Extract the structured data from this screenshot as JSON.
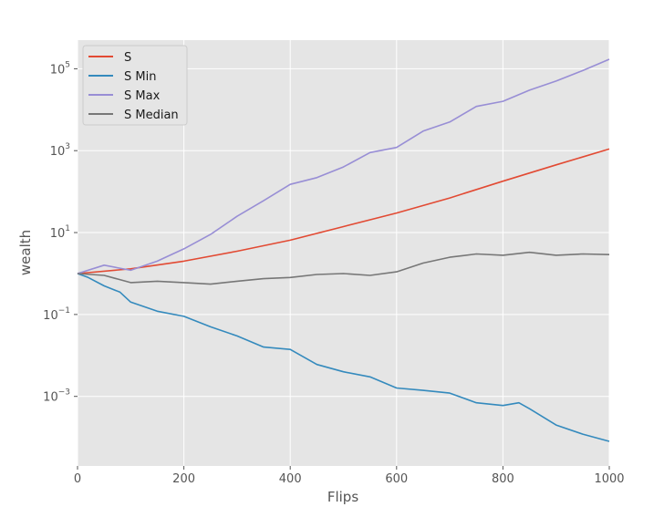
{
  "chart_data": {
    "type": "line",
    "xlabel": "Flips",
    "ylabel": "wealth",
    "yscale": "log",
    "xlim": [
      0,
      1000
    ],
    "ylim": [
      2e-05,
      500000
    ],
    "grid": true,
    "legend_position": "top-left",
    "x_ticks": [
      {
        "value": 0,
        "label": "0"
      },
      {
        "value": 200,
        "label": "200"
      },
      {
        "value": 400,
        "label": "400"
      },
      {
        "value": 600,
        "label": "600"
      },
      {
        "value": 800,
        "label": "800"
      },
      {
        "value": 1000,
        "label": "1000"
      }
    ],
    "y_ticks": [
      {
        "value": 0.001,
        "base": "10",
        "exp": "−3"
      },
      {
        "value": 0.1,
        "base": "10",
        "exp": "−1"
      },
      {
        "value": 10,
        "base": "10",
        "exp": "1"
      },
      {
        "value": 1000,
        "base": "10",
        "exp": "3"
      },
      {
        "value": 100000,
        "base": "10",
        "exp": "5"
      }
    ],
    "series": [
      {
        "name": "S",
        "color": "#E24A33",
        "x": [
          0,
          100,
          200,
          300,
          400,
          500,
          600,
          700,
          800,
          900,
          1000
        ],
        "values": [
          1.0,
          1.3,
          2.0,
          3.5,
          6.5,
          14,
          30,
          70,
          180,
          450,
          1100
        ]
      },
      {
        "name": "S Min",
        "color": "#348ABD",
        "x": [
          0,
          20,
          50,
          80,
          100,
          150,
          200,
          250,
          300,
          350,
          400,
          450,
          500,
          550,
          600,
          650,
          700,
          750,
          800,
          830,
          850,
          900,
          950,
          1000
        ],
        "values": [
          1.0,
          0.8,
          0.5,
          0.35,
          0.2,
          0.12,
          0.09,
          0.05,
          0.03,
          0.016,
          0.014,
          0.006,
          0.004,
          0.003,
          0.0016,
          0.0014,
          0.0012,
          0.0007,
          0.0006,
          0.0007,
          0.0005,
          0.0002,
          0.00012,
          8e-05
        ]
      },
      {
        "name": "S Max",
        "color": "#988ED5",
        "x": [
          0,
          50,
          100,
          150,
          200,
          250,
          300,
          350,
          400,
          450,
          500,
          550,
          600,
          650,
          700,
          750,
          800,
          850,
          900,
          950,
          1000
        ],
        "values": [
          1.0,
          1.6,
          1.2,
          2.0,
          4.0,
          9.0,
          25,
          60,
          150,
          220,
          400,
          900,
          1200,
          3000,
          5000,
          12000,
          16000,
          30000,
          50000,
          90000,
          170000
        ]
      },
      {
        "name": "S Median",
        "color": "#777777",
        "x": [
          0,
          50,
          100,
          150,
          200,
          250,
          300,
          350,
          400,
          450,
          500,
          550,
          600,
          650,
          700,
          750,
          800,
          850,
          900,
          950,
          1000
        ],
        "values": [
          1.0,
          0.9,
          0.6,
          0.65,
          0.6,
          0.55,
          0.65,
          0.75,
          0.8,
          0.95,
          1.0,
          0.9,
          1.1,
          1.8,
          2.5,
          3.0,
          2.8,
          3.3,
          2.8,
          3.0,
          2.9
        ]
      }
    ]
  }
}
